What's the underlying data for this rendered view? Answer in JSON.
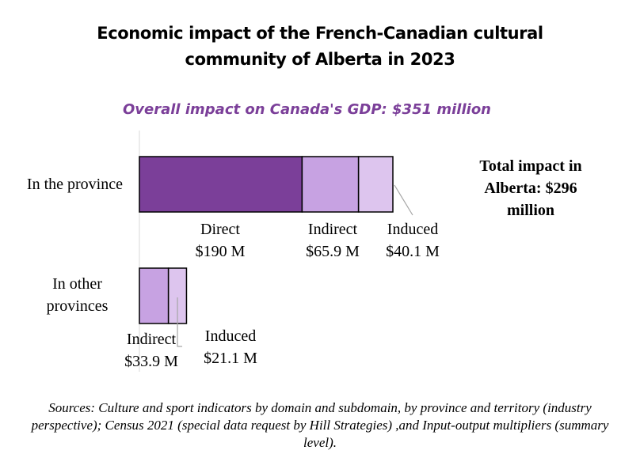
{
  "title_line1": "Economic impact of the French-Canadian cultural",
  "title_line2": "community of Alberta in 2023",
  "subtitle": "Overall impact on Canada's GDP: $351 million",
  "total_note": "Total impact in Alberta: $296 million",
  "source": "Sources: Culture and sport indicators by domain and subdomain, by province and territory (industry perspective); Census 2021 (special data request by Hill Strategies) ,and Input-output multipliers (summary level).",
  "colors": {
    "direct": "#7b3f99",
    "indirect": "#c7a2e2",
    "induced": "#ddc5ee"
  },
  "chart_data": {
    "type": "bar",
    "orientation": "horizontal",
    "stacked": true,
    "title": "Economic impact of the French-Canadian cultural community of Alberta in 2023",
    "units": "$ millions",
    "categories": [
      "In the province",
      "In other provinces"
    ],
    "series": [
      {
        "name": "Direct",
        "values": [
          190,
          0
        ],
        "labels": [
          "$190 M",
          ""
        ]
      },
      {
        "name": "Indirect",
        "values": [
          65.9,
          33.9
        ],
        "labels": [
          "$65.9 M",
          "$33.9 M"
        ]
      },
      {
        "name": "Induced",
        "values": [
          40.1,
          21.1
        ],
        "labels": [
          "$40.1 M",
          "$21.1 M"
        ]
      }
    ]
  }
}
